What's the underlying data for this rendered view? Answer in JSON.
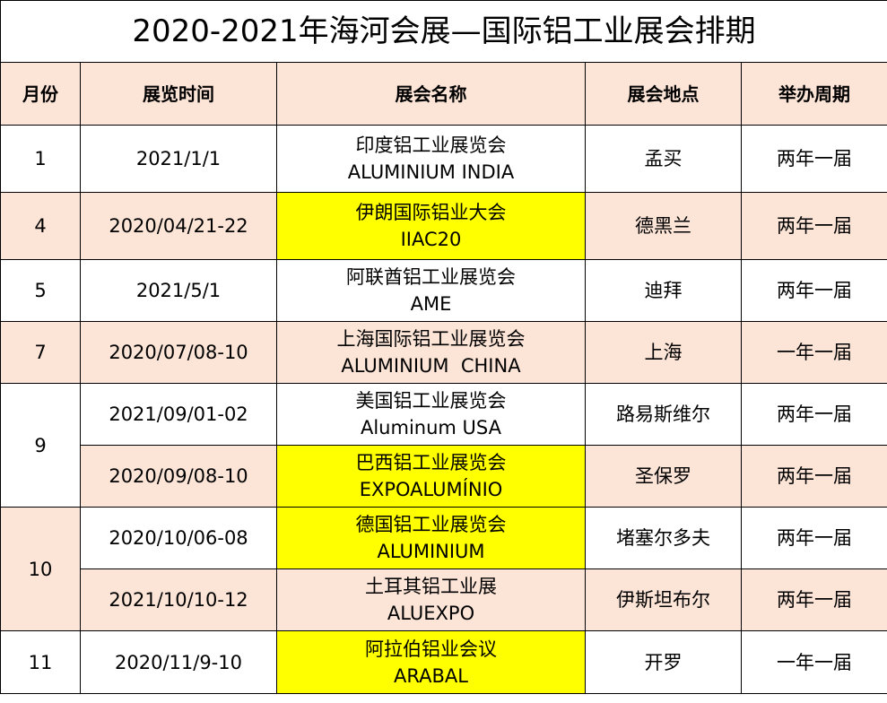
{
  "title": "2020-2021年海河会展—国际铝工业展会排期",
  "headers": [
    "月份",
    "展览时间",
    "展会名称",
    "展会地点",
    "举办周期"
  ],
  "colors": {
    "header_bg": "#fce4d6",
    "alt_row_bg": "#fce4d6",
    "highlight": "#ffff00"
  },
  "rows": [
    {
      "month": "1",
      "date": "2021/1/1",
      "name_cn": "印度铝工业展览会",
      "name_en": "ALUMINIUM INDIA",
      "place": "孟买",
      "cycle": "两年一届"
    },
    {
      "month": "4",
      "date": "2020/04/21-22",
      "name_cn": "伊朗国际铝业大会",
      "name_en": "IIAC20",
      "place": "德黑兰",
      "cycle": "两年一届"
    },
    {
      "month": "5",
      "date": "2021/5/1",
      "name_cn": "阿联酋铝工业展览会",
      "name_en": "AME",
      "place": "迪拜",
      "cycle": "两年一届"
    },
    {
      "month": "7",
      "date": "2020/07/08-10",
      "name_cn": "上海国际铝工业展览会",
      "name_en": "ALUMINIUM  CHINA",
      "place": "上海",
      "cycle": "一年一届"
    },
    {
      "month": "9",
      "date": "2021/09/01-02",
      "name_cn": "美国铝工业展览会",
      "name_en": "Aluminum USA",
      "place": "路易斯维尔",
      "cycle": "两年一届"
    },
    {
      "month": "9",
      "date": "2020/09/08-10",
      "name_cn": "巴西铝工业展览会",
      "name_en": "EXPOALUMÍNIO",
      "place": "圣保罗",
      "cycle": "两年一届"
    },
    {
      "month": "10",
      "date": "2020/10/06-08",
      "name_cn": "德国铝工业展览会",
      "name_en": "ALUMINIUM",
      "place": "堵塞尔多夫",
      "cycle": "两年一届"
    },
    {
      "month": "10",
      "date": "2021/10/10-12",
      "name_cn": "土耳其铝工业展",
      "name_en": "ALUEXPO",
      "place": "伊斯坦布尔",
      "cycle": "两年一届"
    },
    {
      "month": "11",
      "date": "2020/11/9-10",
      "name_cn": "阿拉伯铝业会议",
      "name_en": "ARABAL",
      "place": "开罗",
      "cycle": "一年一届"
    }
  ]
}
